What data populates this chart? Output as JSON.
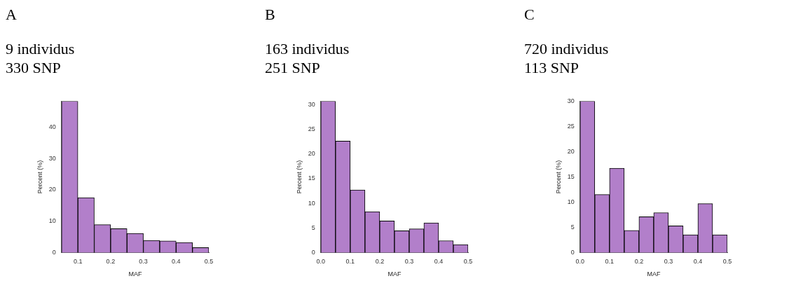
{
  "chart_data": [
    {
      "type": "histogram",
      "title": "A",
      "subtitle": "9 individus\n330 SNP",
      "xlabel": "MAF",
      "ylabel": "Percent (%)",
      "bins": [
        0.05,
        0.1,
        0.15,
        0.2,
        0.25,
        0.3,
        0.35,
        0.4,
        0.45,
        0.5
      ],
      "values": [
        48.3,
        17.5,
        8.9,
        7.6,
        6.1,
        3.9,
        3.7,
        3.2,
        1.6
      ],
      "color": "#b27fca",
      "xlim": [
        0.05,
        0.5
      ],
      "xticks": [
        0.1,
        0.2,
        0.3,
        0.4,
        0.5
      ],
      "ylim": [
        0,
        48.3
      ],
      "yticks": [
        0,
        10,
        20,
        30,
        40
      ],
      "grid": false
    },
    {
      "type": "histogram",
      "title": "B",
      "subtitle": "163 individus\n251 SNP",
      "xlabel": "MAF",
      "ylabel": "Percent (%)",
      "bins": [
        0,
        0.05,
        0.1,
        0.15,
        0.2,
        0.25,
        0.3,
        0.35,
        0.4,
        0.45,
        0.5
      ],
      "values": [
        30.7,
        22.6,
        12.7,
        8.3,
        6.4,
        4.4,
        4.8,
        6.0,
        2.4,
        1.6
      ],
      "color": "#b27fca",
      "xlim": [
        0,
        0.5
      ],
      "xticks": [
        {
          "value": 0,
          "label": "0.0"
        },
        0.1,
        0.2,
        0.3,
        0.4,
        0.5
      ],
      "ylim": [
        0,
        30.7
      ],
      "yticks": [
        0,
        5,
        10,
        15,
        20,
        25,
        30
      ],
      "grid": false
    },
    {
      "type": "histogram",
      "title": "C",
      "subtitle": "720 individus\n113 SNP",
      "xlabel": "MAF",
      "ylabel": "Percent (%)",
      "bins": [
        0,
        0.05,
        0.1,
        0.15,
        0.2,
        0.25,
        0.3,
        0.35,
        0.4,
        0.45,
        0.5
      ],
      "values": [
        30,
        11.5,
        16.7,
        4.4,
        7.1,
        7.9,
        5.3,
        3.5,
        9.7,
        3.5
      ],
      "color": "#b27fca",
      "xlim": [
        0,
        0.5
      ],
      "xticks": [
        {
          "value": 0,
          "label": "0.0"
        },
        0.1,
        0.2,
        0.3,
        0.4,
        0.5
      ],
      "ylim": [
        0,
        30
      ],
      "yticks": [
        0,
        5,
        10,
        15,
        20,
        25,
        30
      ],
      "grid": false
    }
  ]
}
